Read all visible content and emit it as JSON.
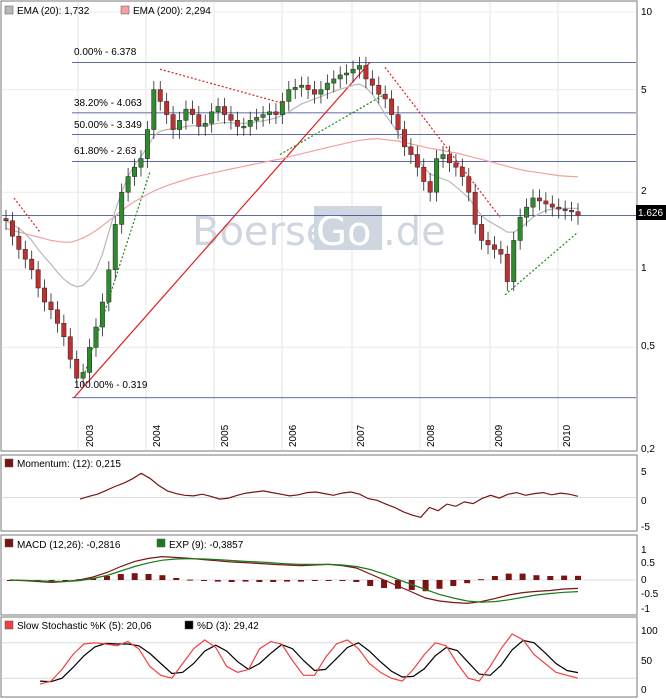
{
  "watermark": {
    "left": "Boerse",
    "box": "Go",
    "right": ".de"
  },
  "last_price": "1.626",
  "panels": {
    "price": {
      "legend": [
        {
          "label": "EMA (20): 1,732",
          "color": "#b8b8b8"
        },
        {
          "label": "EMA (200): 2,294",
          "color": "#f4a0a0"
        }
      ]
    },
    "momentum": {
      "legend": [
        {
          "label": "Momentum: (12): 0,215",
          "color": "#7a1414"
        }
      ]
    },
    "macd": {
      "legend": [
        {
          "label": "MACD (12,26): -0,2816",
          "color": "#7a1414"
        },
        {
          "label": "EXP (9): -0,3857",
          "color": "#1a7a1a"
        }
      ]
    },
    "stoch": {
      "legend": [
        {
          "label": "Slow Stochastic %K (5): 20,06",
          "color": "#f04040"
        },
        {
          "label": "%D (3): 29,42",
          "color": "#000000"
        }
      ]
    }
  },
  "chart_data": [
    {
      "type": "candlestick",
      "scale": "log",
      "ylim": [
        0.2,
        10
      ],
      "yticks": [
        "10",
        "5",
        "2",
        "1",
        "0,5",
        "0,2"
      ],
      "xticks": [
        "2003",
        "2004",
        "2005",
        "2006",
        "2007",
        "2008",
        "2009",
        "2010"
      ],
      "fibonacci": [
        {
          "label": "0.00% - 6.378",
          "value": 6.378
        },
        {
          "label": "38.20% - 4.063",
          "value": 4.063
        },
        {
          "label": "50.00% - 3.349",
          "value": 3.349
        },
        {
          "label": "61.80% - 2.63",
          "value": 2.63
        },
        {
          "label": "100.00% - 0.319",
          "value": 0.319
        }
      ],
      "close": [
        1.55,
        1.35,
        1.2,
        1.1,
        1.0,
        0.85,
        0.75,
        0.7,
        0.62,
        0.55,
        0.45,
        0.38,
        0.4,
        0.5,
        0.6,
        0.75,
        1.0,
        1.5,
        2.0,
        2.3,
        2.5,
        2.7,
        3.5,
        5.0,
        4.5,
        4.0,
        3.5,
        3.8,
        4.2,
        4.0,
        3.6,
        3.7,
        4.1,
        4.3,
        4.0,
        3.8,
        3.6,
        3.6,
        3.8,
        3.9,
        4.0,
        4.1,
        4.0,
        4.5,
        5.0,
        5.1,
        5.2,
        5.0,
        4.8,
        5.0,
        5.3,
        5.5,
        5.7,
        5.8,
        6.0,
        6.2,
        5.5,
        5.2,
        4.8,
        4.6,
        4.0,
        3.5,
        3.0,
        2.8,
        2.5,
        2.2,
        2.0,
        2.7,
        2.8,
        2.6,
        2.5,
        2.3,
        2.0,
        1.5,
        1.3,
        1.25,
        1.2,
        1.15,
        0.9,
        1.3,
        1.6,
        1.75,
        1.9,
        1.85,
        1.8,
        1.75,
        1.72,
        1.7,
        1.68,
        1.626
      ],
      "ema20": [
        1.55,
        1.5,
        1.45,
        1.38,
        1.3,
        1.2,
        1.12,
        1.05,
        0.98,
        0.92,
        0.88,
        0.86,
        0.87,
        0.92,
        1.0,
        1.15,
        1.4,
        1.7,
        2.0,
        2.3,
        2.55,
        2.75,
        3.0,
        3.3,
        3.45,
        3.5,
        3.52,
        3.55,
        3.6,
        3.62,
        3.62,
        3.63,
        3.66,
        3.7,
        3.72,
        3.72,
        3.7,
        3.7,
        3.72,
        3.75,
        3.78,
        3.83,
        3.88,
        3.98,
        4.1,
        4.25,
        4.4,
        4.5,
        4.6,
        4.7,
        4.8,
        4.92,
        5.02,
        5.1,
        5.2,
        5.25,
        5.1,
        4.8,
        4.4,
        4.0,
        3.7,
        3.4,
        3.1,
        2.9,
        2.7,
        2.5,
        2.35,
        2.3,
        2.25,
        2.2,
        2.1,
        2.0,
        1.9,
        1.75,
        1.62,
        1.55,
        1.5,
        1.45,
        1.4,
        1.4,
        1.45,
        1.52,
        1.6,
        1.65,
        1.7,
        1.72,
        1.73,
        1.73,
        1.73,
        1.732
      ],
      "ema200": [
        1.45,
        1.42,
        1.4,
        1.38,
        1.36,
        1.34,
        1.32,
        1.3,
        1.29,
        1.28,
        1.28,
        1.3,
        1.33,
        1.37,
        1.42,
        1.48,
        1.55,
        1.62,
        1.7,
        1.77,
        1.84,
        1.9,
        1.96,
        2.02,
        2.07,
        2.12,
        2.16,
        2.2,
        2.24,
        2.28,
        2.31,
        2.34,
        2.37,
        2.4,
        2.43,
        2.46,
        2.49,
        2.52,
        2.55,
        2.58,
        2.61,
        2.64,
        2.67,
        2.7,
        2.74,
        2.78,
        2.82,
        2.86,
        2.9,
        2.94,
        2.98,
        3.02,
        3.06,
        3.1,
        3.14,
        3.18,
        3.2,
        3.22,
        3.22,
        3.2,
        3.18,
        3.16,
        3.12,
        3.08,
        3.04,
        3.0,
        2.96,
        2.93,
        2.9,
        2.87,
        2.84,
        2.8,
        2.76,
        2.72,
        2.68,
        2.64,
        2.6,
        2.56,
        2.52,
        2.48,
        2.45,
        2.42,
        2.4,
        2.38,
        2.36,
        2.34,
        2.32,
        2.31,
        2.3,
        2.294
      ],
      "momentum": [
        -0.3,
        0.2,
        0.6,
        1.3,
        2.0,
        2.6,
        3.4,
        4.4,
        3.5,
        2.2,
        1.2,
        0.7,
        0.4,
        0.3,
        0.6,
        0.2,
        -0.3,
        -0.1,
        0.4,
        0.8,
        1.0,
        1.2,
        0.9,
        0.6,
        0.3,
        0.5,
        0.9,
        1.0,
        0.7,
        0.4,
        0.8,
        1.0,
        0.6,
        -0.2,
        -0.5,
        -1.2,
        -1.8,
        -2.6,
        -3.2,
        -3.6,
        -1.8,
        -2.4,
        -1.2,
        -1.6,
        -0.8,
        -1.1,
        -0.2,
        0.4,
        -0.1,
        0.6,
        0.9,
        0.4,
        0.7,
        0.9,
        0.5,
        0.8,
        0.6,
        0.215
      ],
      "macd": [
        0,
        -0.02,
        -0.05,
        -0.08,
        -0.05,
        0,
        0.1,
        0.25,
        0.45,
        0.62,
        0.72,
        0.78,
        0.75,
        0.72,
        0.68,
        0.64,
        0.6,
        0.58,
        0.55,
        0.52,
        0.5,
        0.48,
        0.5,
        0.52,
        0.48,
        0.4,
        0.2,
        0,
        -0.2,
        -0.4,
        -0.6,
        -0.7,
        -0.75,
        -0.78,
        -0.72,
        -0.62,
        -0.5,
        -0.42,
        -0.38,
        -0.35,
        -0.3,
        -0.2816
      ],
      "macd_signal": [
        0,
        -0.01,
        -0.03,
        -0.05,
        -0.05,
        -0.02,
        0.05,
        0.15,
        0.3,
        0.45,
        0.57,
        0.66,
        0.7,
        0.71,
        0.7,
        0.68,
        0.65,
        0.62,
        0.6,
        0.57,
        0.54,
        0.52,
        0.52,
        0.52,
        0.5,
        0.45,
        0.35,
        0.2,
        0.02,
        -0.15,
        -0.32,
        -0.48,
        -0.6,
        -0.7,
        -0.74,
        -0.72,
        -0.66,
        -0.58,
        -0.5,
        -0.45,
        -0.41,
        -0.3857
      ],
      "stoch_k": [
        10,
        15,
        35,
        60,
        78,
        80,
        78,
        75,
        82,
        70,
        40,
        25,
        20,
        45,
        70,
        85,
        72,
        40,
        30,
        35,
        70,
        82,
        78,
        50,
        25,
        25,
        55,
        78,
        85,
        70,
        45,
        30,
        20,
        15,
        35,
        60,
        80,
        75,
        45,
        20,
        15,
        40,
        70,
        95,
        85,
        60,
        45,
        30,
        25,
        20.06
      ],
      "stoch_d": [
        15,
        14,
        20,
        38,
        58,
        73,
        79,
        78,
        78,
        75,
        62,
        45,
        28,
        30,
        45,
        66,
        76,
        66,
        48,
        35,
        45,
        62,
        77,
        70,
        50,
        33,
        35,
        53,
        72,
        80,
        66,
        48,
        32,
        22,
        23,
        36,
        58,
        72,
        67,
        47,
        27,
        25,
        42,
        68,
        84,
        80,
        63,
        45,
        33,
        29.42
      ]
    }
  ]
}
